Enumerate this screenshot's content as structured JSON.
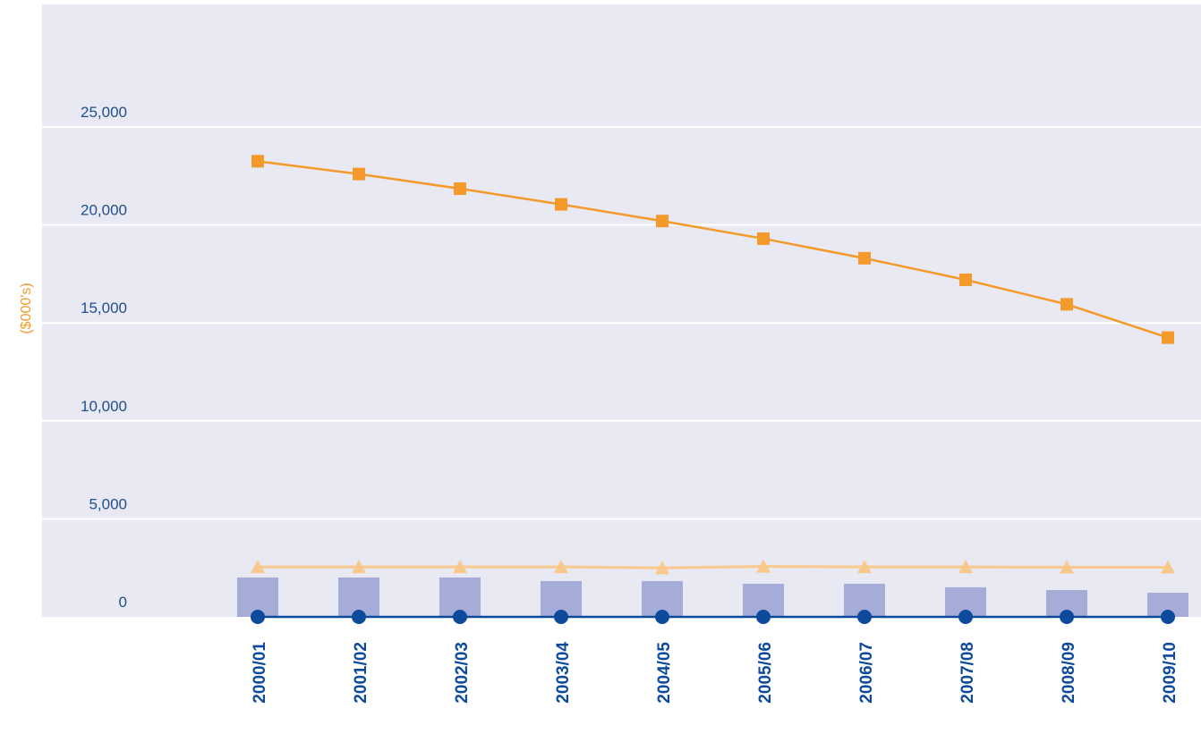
{
  "chart_data": {
    "type": "combo",
    "y_label": "($000's)",
    "categories": [
      "2000/01",
      "2001/02",
      "2002/03",
      "2003/04",
      "2004/05",
      "2005/06",
      "2006/07",
      "2007/08",
      "2008/09",
      "2009/10"
    ],
    "ylim": [
      0,
      31250
    ],
    "yticks": [
      0,
      {
        "value": 5000,
        "label": "5,000"
      },
      {
        "value": 10000,
        "label": "10,000"
      },
      {
        "value": 15000,
        "label": "15,000"
      },
      {
        "value": 20000,
        "label": "20,000"
      },
      {
        "value": 25000,
        "label": "25,000"
      }
    ],
    "grid": true,
    "series": [
      {
        "type": "bar",
        "color": "#a6acd8",
        "values": [
          2010,
          2010,
          2010,
          1830,
          1830,
          1690,
          1690,
          1510,
          1370,
          1230
        ]
      },
      {
        "type": "line",
        "marker": "square",
        "color": "#f39a2b",
        "values": [
          23250,
          22600,
          21850,
          21050,
          20200,
          19300,
          18300,
          17200,
          15950,
          14250
        ]
      },
      {
        "type": "line",
        "marker": "triangle",
        "color": "#f8c98a",
        "values": [
          2550,
          2550,
          2550,
          2550,
          2500,
          2570,
          2550,
          2550,
          2530,
          2530
        ]
      },
      {
        "type": "line",
        "marker": "circle",
        "color": "#0d4a9c",
        "values": [
          0,
          0,
          0,
          0,
          0,
          0,
          0,
          0,
          0,
          0
        ]
      }
    ]
  }
}
